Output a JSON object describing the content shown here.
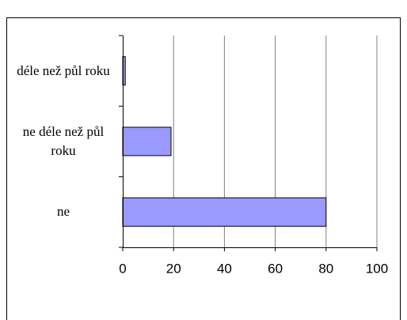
{
  "chart_data": {
    "type": "bar",
    "orientation": "horizontal",
    "categories": [
      "ne",
      "ne déle než půl roku",
      "déle než půl roku"
    ],
    "values": [
      80,
      19,
      1
    ],
    "color": "#9999ff",
    "xlim": [
      0,
      100
    ],
    "xticks": [
      0,
      20,
      40,
      60,
      80,
      100
    ],
    "grid": true
  }
}
